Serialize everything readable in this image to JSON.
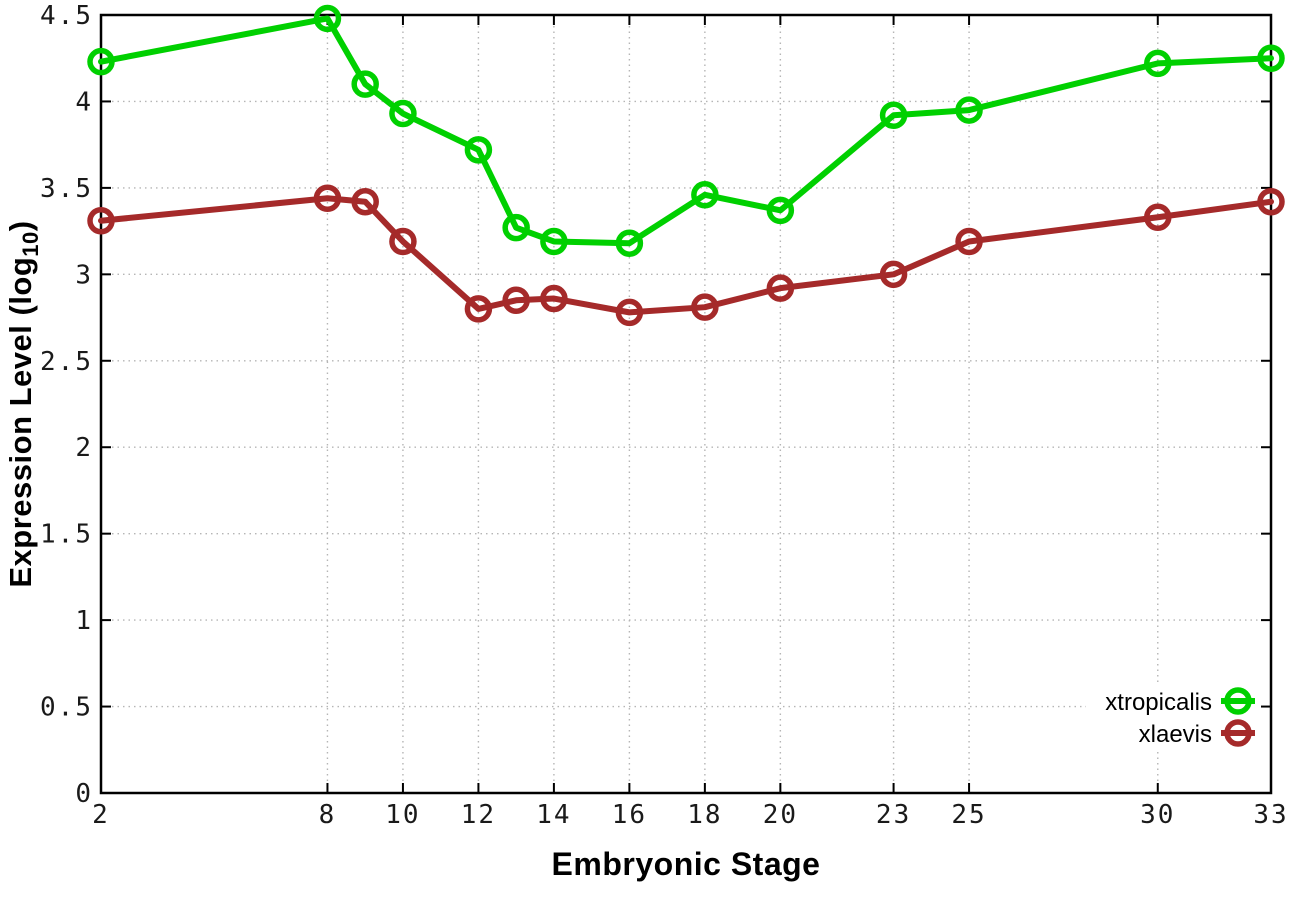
{
  "figure": {
    "xlabel": "Embryonic Stage",
    "ylabel": {
      "prefix": "Expression Level (log",
      "sub": "10",
      "suffix": ")"
    }
  },
  "chart_data": {
    "type": "line",
    "title": "",
    "xlabel": "Embryonic Stage",
    "ylabel": "Expression Level (log10)",
    "x": [
      2,
      8,
      9,
      10,
      12,
      13,
      14,
      16,
      18,
      20,
      23,
      25,
      30,
      33
    ],
    "series": [
      {
        "name": "xtropicalis",
        "color": "#00d000",
        "values": [
          4.23,
          4.48,
          4.1,
          3.93,
          3.72,
          3.27,
          3.19,
          3.18,
          3.46,
          3.37,
          3.92,
          3.95,
          4.22,
          4.25
        ]
      },
      {
        "name": "xlaevis",
        "color": "#a52a2a",
        "values": [
          3.31,
          3.44,
          3.42,
          3.19,
          2.8,
          2.85,
          2.86,
          2.78,
          2.81,
          2.92,
          3.0,
          3.19,
          3.33,
          3.42
        ]
      }
    ],
    "xlim": [
      2,
      33
    ],
    "ylim": [
      0,
      4.5
    ],
    "xticks": {
      "values": [
        2,
        8,
        10,
        12,
        14,
        16,
        18,
        20,
        23,
        25,
        30,
        33
      ],
      "labels": [
        "2",
        "8",
        "10",
        "12",
        "14",
        "16",
        "18",
        "20",
        "23",
        "25",
        "30",
        "33"
      ]
    },
    "yticks": {
      "values": [
        0,
        0.5,
        1,
        1.5,
        2,
        2.5,
        3,
        3.5,
        4,
        4.5
      ],
      "labels": [
        "0",
        "0.5",
        "1",
        "1.5",
        "2",
        "2.5",
        "3",
        "3.5",
        "4",
        "4.5"
      ]
    },
    "grid": true,
    "marker": "open-circle",
    "legend_position": "bottom-right",
    "legend_entries": [
      "xtropicalis",
      "xlaevis"
    ]
  },
  "style": {
    "axis_color": "#000000",
    "grid_color": "#b5b5b5",
    "tick_label_color": "#1a1a1a",
    "line_width": 6,
    "marker_radius": 11,
    "marker_stroke": 5.5
  }
}
